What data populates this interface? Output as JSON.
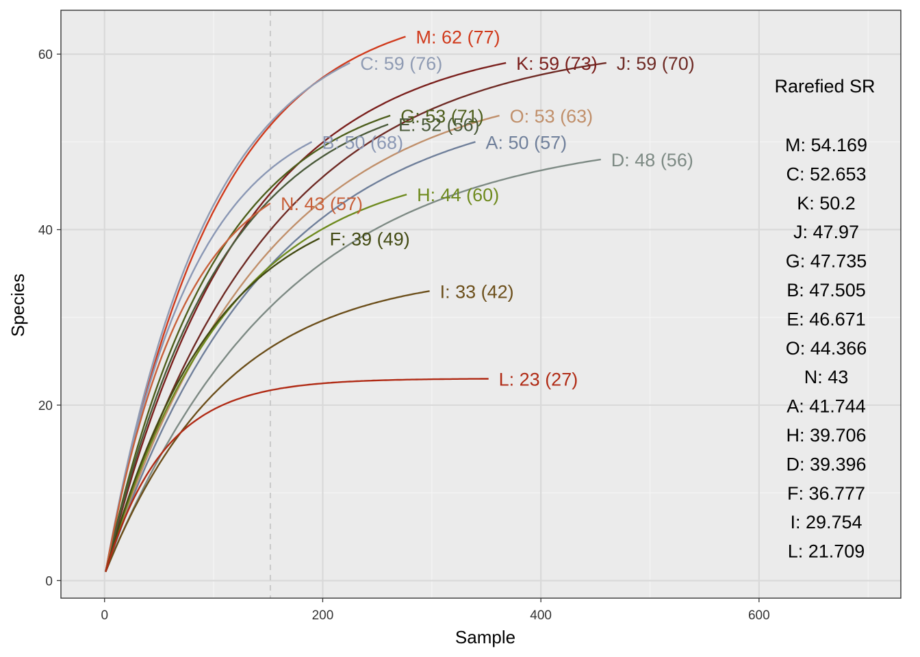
{
  "chart_data": {
    "type": "line",
    "xlabel": "Sample",
    "ylabel": "Species",
    "xlim": [
      -40,
      730
    ],
    "ylim": [
      -2,
      65
    ],
    "x_ticks": [
      0,
      200,
      400,
      600
    ],
    "y_ticks": [
      0,
      20,
      40,
      60
    ],
    "x_minor_ticks": [
      100,
      300,
      500,
      700
    ],
    "y_minor_ticks": [
      10,
      30,
      50
    ],
    "grid": true,
    "background": "#ebebeb",
    "rarefaction_sample": 152,
    "series": [
      {
        "name": "M",
        "max_sample": 276,
        "final_species": 62,
        "label": "M: 62 (77)",
        "color": "#d03a1c",
        "k": 0.0101
      },
      {
        "name": "C",
        "max_sample": 225,
        "final_species": 59,
        "label": "C: 59 (76)",
        "color": "#8f9bb3",
        "k": 0.0108
      },
      {
        "name": "K",
        "max_sample": 368,
        "final_species": 59,
        "label": "K: 59 (73)",
        "color": "#7a1f1c",
        "k": 0.0081
      },
      {
        "name": "J",
        "max_sample": 460,
        "final_species": 59,
        "label": "J: 59 (70)",
        "color": "#6e2a24",
        "k": 0.0068
      },
      {
        "name": "G",
        "max_sample": 262,
        "final_species": 53,
        "label": "G: 53 (71)",
        "color": "#4d5e1c",
        "k": 0.01
      },
      {
        "name": "E",
        "max_sample": 260,
        "final_species": 52,
        "label": "E: 52 (56)",
        "color": "#4a5a3a",
        "k": 0.0095
      },
      {
        "name": "O",
        "max_sample": 362,
        "final_species": 53,
        "label": "O: 53 (63)",
        "color": "#c08f6a",
        "k": 0.0069
      },
      {
        "name": "B",
        "max_sample": 190,
        "final_species": 50,
        "label": "B: 50 (68)",
        "color": "#8a97b4",
        "k": 0.0125
      },
      {
        "name": "A",
        "max_sample": 340,
        "final_species": 50,
        "label": "A: 50 (57)",
        "color": "#6f7f9a",
        "k": 0.0068
      },
      {
        "name": "D",
        "max_sample": 455,
        "final_species": 48,
        "label": "D: 48 (56)",
        "color": "#7d8a84",
        "k": 0.0061
      },
      {
        "name": "N",
        "max_sample": 152,
        "final_species": 43,
        "label": "N: 43 (57)",
        "color": "#c8603a",
        "k": 0.014
      },
      {
        "name": "H",
        "max_sample": 277,
        "final_species": 44,
        "label": "H: 44 (60)",
        "color": "#6e8a1e",
        "k": 0.009
      },
      {
        "name": "F",
        "max_sample": 197,
        "final_species": 39,
        "label": "F: 39 (49)",
        "color": "#424a12",
        "k": 0.0102
      },
      {
        "name": "I",
        "max_sample": 298,
        "final_species": 33,
        "label": "I: 33 (42)",
        "color": "#6b4e1a",
        "k": 0.009
      },
      {
        "name": "L",
        "max_sample": 352,
        "final_species": 23,
        "label": "L: 23 (27)",
        "color": "#b02a14",
        "k": 0.0185
      }
    ],
    "legend": {
      "title": "Rarefied SR",
      "entries": [
        "M: 54.169",
        "C: 52.653",
        "K: 50.2",
        "J: 47.97",
        "G: 47.735",
        "B: 47.505",
        "E: 46.671",
        "O: 44.366",
        "N: 43",
        "A: 41.744",
        "H: 39.706",
        "D: 39.396",
        "F: 36.777",
        "I: 29.754",
        "L: 21.709"
      ]
    }
  }
}
